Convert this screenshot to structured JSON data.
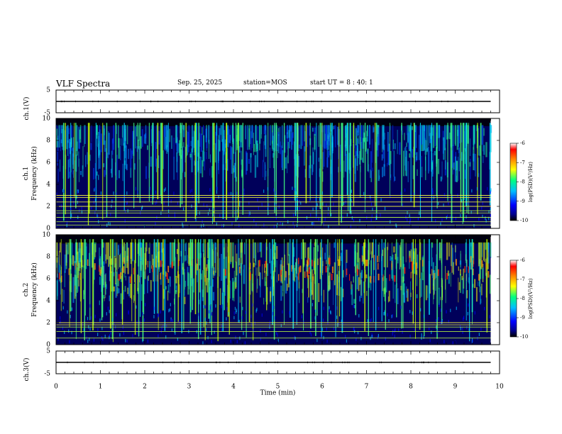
{
  "header": {
    "title": "VLF Spectra",
    "date": "Sep. 25, 2025",
    "station": "station=MOS",
    "start": "start UT = 8 : 40: 1"
  },
  "colors": {
    "colormap": [
      "#000000",
      "#00008b",
      "#0000ff",
      "#00bfff",
      "#00ff80",
      "#ffff00",
      "#ff8000",
      "#ff0000",
      "#ffffff"
    ]
  },
  "chart_data": [
    {
      "type": "line",
      "panel": "ch1-voltage",
      "ylabel": "ch.1(V)",
      "ylim": [
        -5,
        5
      ],
      "yticks": [
        "5",
        "-5"
      ],
      "series": [
        {
          "x": [
            0,
            9.8
          ],
          "y": [
            0,
            0
          ]
        }
      ]
    },
    {
      "type": "heatmap",
      "panel": "ch1-spectrogram",
      "ylabel": "ch.1\nFrequency (kHz)",
      "ylim": [
        0,
        10
      ],
      "yticks": [
        "0",
        "2",
        "4",
        "6",
        "8",
        "10"
      ],
      "xlim": [
        0,
        9.8
      ],
      "colorbar": {
        "label": "log(PSD)(V²/Hz)",
        "range": [
          -10,
          -6
        ],
        "ticks": [
          "-6",
          "-7",
          "-8",
          "-9",
          "-10"
        ]
      },
      "band_lines_khz": [
        0.3,
        0.6,
        1.0,
        1.4,
        1.6,
        2.0,
        2.4,
        2.8,
        3.0
      ]
    },
    {
      "type": "heatmap",
      "panel": "ch2-spectrogram",
      "ylabel": "ch.2\nFrequency (kHz)",
      "ylim": [
        0,
        10
      ],
      "yticks": [
        "0",
        "2",
        "4",
        "6",
        "8",
        "10"
      ],
      "xlim": [
        0,
        9.8
      ],
      "colorbar": {
        "label": "log(PSD)(V²/Hz)",
        "range": [
          -10,
          -6
        ],
        "ticks": [
          "-6",
          "-7",
          "-8",
          "-9",
          "-10"
        ]
      },
      "band_lines_khz": [
        0.6,
        1.2,
        1.6,
        1.8,
        2.0
      ]
    },
    {
      "type": "line",
      "panel": "ch3-voltage",
      "ylabel": "ch.3(V)",
      "ylim": [
        -5,
        5
      ],
      "yticks": [
        "5",
        "-5"
      ],
      "xlabel": "Time (min)",
      "xlim": [
        0,
        10
      ],
      "xticks": [
        "0",
        "1",
        "2",
        "3",
        "4",
        "5",
        "6",
        "7",
        "8",
        "9",
        "10"
      ],
      "series": [
        {
          "x": [
            0,
            9.8
          ],
          "y": [
            0,
            0
          ]
        }
      ]
    }
  ]
}
